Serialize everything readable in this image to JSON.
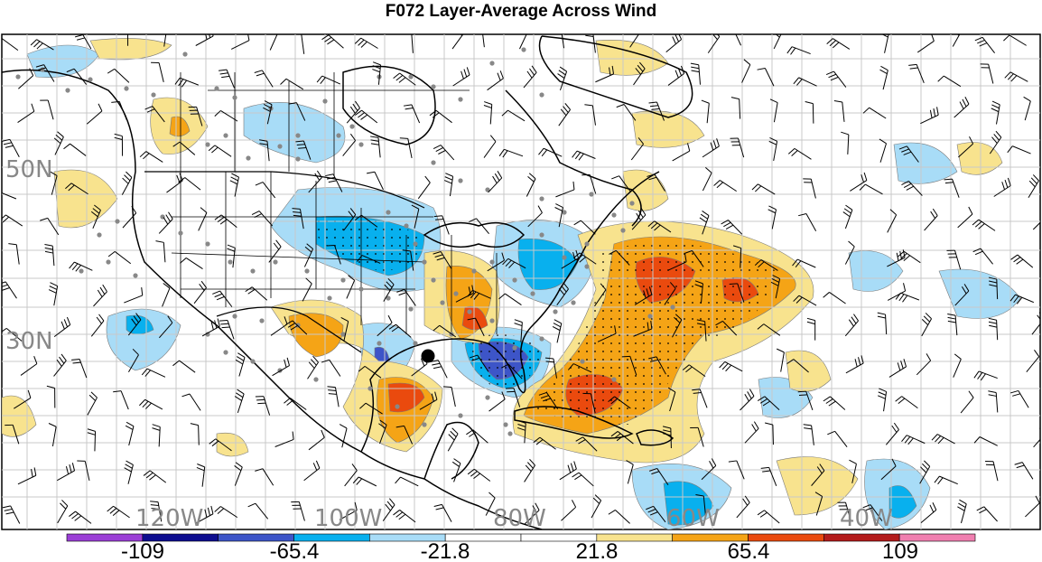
{
  "title": "F072 Layer-Average Across Wind",
  "lat_labels": [
    "50N",
    "30N"
  ],
  "lon_labels": [
    "120W",
    "100W",
    "80W",
    "60W",
    "40W"
  ],
  "colorbar": {
    "colors": [
      "#9b3fd6",
      "#0d0d8f",
      "#3d55c8",
      "#08b0ee",
      "#a8dcf7",
      "#ffffff",
      "#ffffff",
      "#f8e38e",
      "#f5a416",
      "#ea4a0e",
      "#b31b1b",
      "#f07fb0"
    ],
    "labels": [
      "-109",
      "-65.4",
      "-21.8",
      "21.8",
      "65.4",
      "109"
    ]
  },
  "colors": {
    "land_line": "#000000",
    "grid": "#c8c8c8",
    "station": "#888888",
    "barb": "#000000"
  },
  "marker": "storm-center-dot"
}
